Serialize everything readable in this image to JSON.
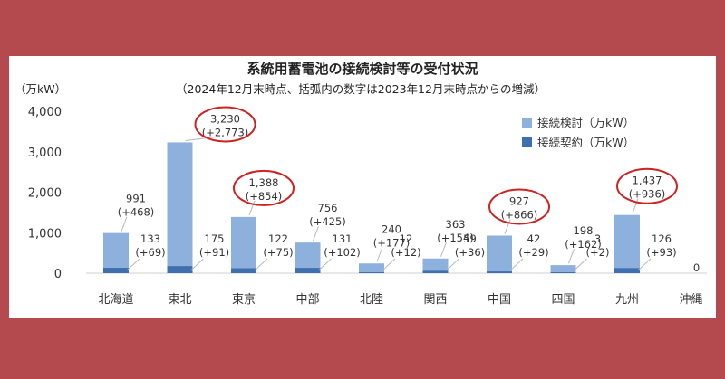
{
  "chart_data": {
    "type": "bar",
    "title": "系統用蓄電池の接続検討等の受付状況",
    "subtitle": "（2024年12月末時点、括弧内の数字は2023年12月末時点からの増減）",
    "unit_label": "（万kW）",
    "categories": [
      "北海道",
      "東北",
      "東京",
      "中部",
      "北陸",
      "関西",
      "中国",
      "四国",
      "九州",
      "沖縄"
    ],
    "series": [
      {
        "name": "接続検討（万kW）",
        "color": "#8eb0dc",
        "values": [
          991,
          3230,
          1388,
          756,
          240,
          363,
          927,
          198,
          1437,
          0
        ],
        "labels": [
          "991",
          "3,230",
          "1,388",
          "756",
          "240",
          "363",
          "927",
          "198",
          "1,437",
          ""
        ],
        "changes": [
          "(+468)",
          "(+2,773)",
          "(+854)",
          "(+425)",
          "(+177)",
          "(+154)",
          "(+866)",
          "(+162)",
          "(+936)",
          ""
        ]
      },
      {
        "name": "接続契約（万kW）",
        "color": "#3e6fae",
        "values": [
          133,
          175,
          122,
          131,
          12,
          59,
          42,
          3,
          126,
          0
        ],
        "labels": [
          "133",
          "175",
          "122",
          "131",
          "12",
          "59",
          "42",
          "3",
          "126",
          "0"
        ],
        "changes": [
          "(+69)",
          "(+91)",
          "(+75)",
          "(+102)",
          "(+12)",
          "(+36)",
          "(+29)",
          "(+2)",
          "(+93)",
          ""
        ]
      }
    ],
    "ylim": [
      0,
      4000
    ],
    "yticks": [
      "0",
      "1,000",
      "2,000",
      "3,000",
      "4,000"
    ],
    "ytick_values": [
      0,
      1000,
      2000,
      3000,
      4000
    ],
    "highlighted_categories": [
      "東北",
      "東京",
      "中国",
      "九州"
    ],
    "highlight_color": "#cc2222",
    "grid": false,
    "legend_position": "top-right"
  }
}
